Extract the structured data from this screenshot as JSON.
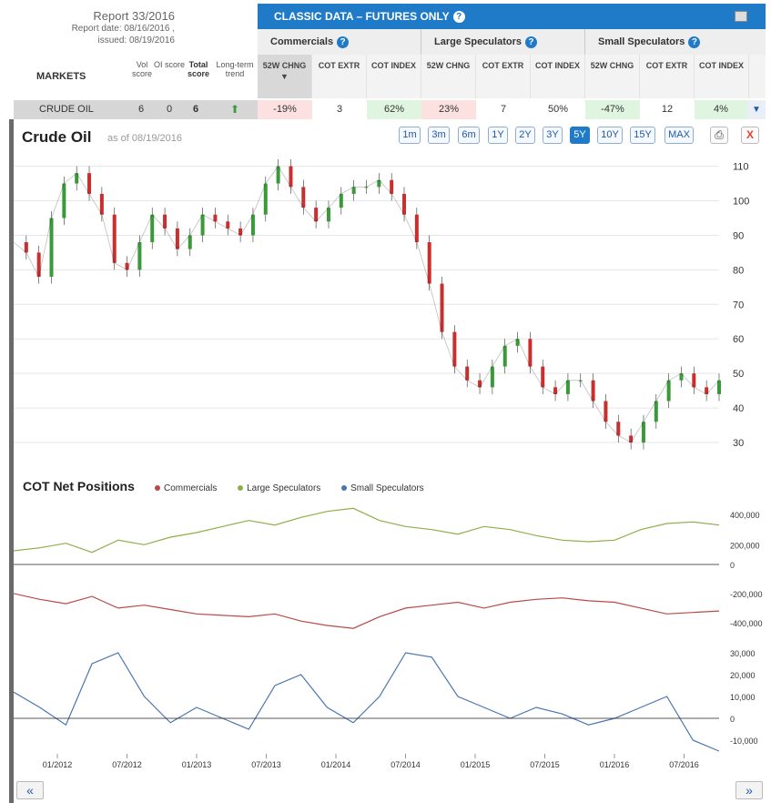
{
  "report": {
    "title": "Report 33/2016",
    "date": "Report date: 08/16/2016 ,",
    "issued": "issued: 08/19/2016"
  },
  "header": {
    "banner": "CLASSIC DATA – FUTURES ONLY",
    "markets": "MARKETS",
    "vol": "Vol score",
    "oi": "OI score",
    "total": "Total score",
    "trend": "Long-term trend",
    "groups": [
      "Commercials",
      "Large Speculators",
      "Small Speculators"
    ],
    "sub": [
      "52W CHNG",
      "COT EXTR",
      "COT INDEX",
      "52W CHNG",
      "COT EXTR",
      "COT INDEX",
      "52W CHNG",
      "COT EXTR",
      "COT INDEX"
    ]
  },
  "row": {
    "market": "CRUDE OIL",
    "vol": "6",
    "oi": "0",
    "total": "6",
    "cells": [
      "-19%",
      "3",
      "62%",
      "23%",
      "7",
      "50%",
      "-47%",
      "12",
      "4%"
    ]
  },
  "chart": {
    "title": "Crude Oil",
    "asof": "as of 08/19/2016",
    "ranges": [
      "1m",
      "3m",
      "6m",
      "1Y",
      "2Y",
      "3Y",
      "5Y",
      "10Y",
      "15Y",
      "MAX"
    ],
    "active": "5Y",
    "close": "X"
  },
  "cot": {
    "title": "COT Net Positions",
    "legend": [
      "Commercials",
      "Large Speculators",
      "Small Speculators"
    ]
  },
  "colors": {
    "commercials": "#b94a48",
    "large": "#8fae4a",
    "small": "#4a76b0",
    "up": "#3a9a3a",
    "down": "#c83030"
  },
  "chart_data": {
    "type": "line",
    "price_axis": {
      "ticks": [
        110,
        100,
        90,
        80,
        70,
        60,
        50,
        40,
        30
      ],
      "ylim": [
        25,
        112
      ]
    },
    "x_ticks": [
      "01/2012",
      "07/2012",
      "01/2013",
      "07/2013",
      "01/2014",
      "07/2014",
      "01/2015",
      "07/2015",
      "01/2016",
      "07/2016"
    ],
    "price": {
      "name": "Crude Oil",
      "values": [
        88,
        85,
        78,
        95,
        105,
        108,
        102,
        96,
        82,
        80,
        88,
        96,
        92,
        86,
        90,
        96,
        94,
        92,
        90,
        96,
        105,
        110,
        104,
        98,
        94,
        98,
        102,
        104,
        104,
        106,
        102,
        96,
        88,
        76,
        62,
        52,
        48,
        46,
        52,
        58,
        60,
        52,
        46,
        44,
        48,
        48,
        42,
        36,
        32,
        30,
        36,
        42,
        48,
        50,
        46,
        44,
        48
      ]
    },
    "cot_axes": {
      "large_ticks": [
        400000,
        200000
      ],
      "comm_ticks": [
        0,
        -200000,
        -400000
      ],
      "small_ticks": [
        30000,
        20000,
        10000,
        0,
        -10000
      ]
    },
    "series": [
      {
        "name": "Large Speculators",
        "values": [
          160000,
          180000,
          210000,
          150000,
          230000,
          200000,
          250000,
          280000,
          320000,
          360000,
          330000,
          380000,
          420000,
          440000,
          360000,
          320000,
          300000,
          270000,
          320000,
          300000,
          260000,
          230000,
          220000,
          230000,
          300000,
          340000,
          350000,
          330000
        ]
      },
      {
        "name": "Commercials",
        "values": [
          -200000,
          -240000,
          -270000,
          -220000,
          -300000,
          -280000,
          -310000,
          -340000,
          -350000,
          -360000,
          -340000,
          -390000,
          -420000,
          -440000,
          -360000,
          -300000,
          -280000,
          -260000,
          -300000,
          -260000,
          -240000,
          -230000,
          -250000,
          -260000,
          -300000,
          -340000,
          -330000,
          -320000
        ]
      },
      {
        "name": "Small Speculators",
        "values": [
          12000,
          5000,
          -3000,
          25000,
          30000,
          10000,
          -2000,
          5000,
          0,
          -5000,
          15000,
          20000,
          5000,
          -2000,
          10000,
          30000,
          28000,
          10000,
          5000,
          0,
          5000,
          2000,
          -3000,
          0,
          5000,
          10000,
          -10000,
          -15000
        ]
      }
    ]
  }
}
